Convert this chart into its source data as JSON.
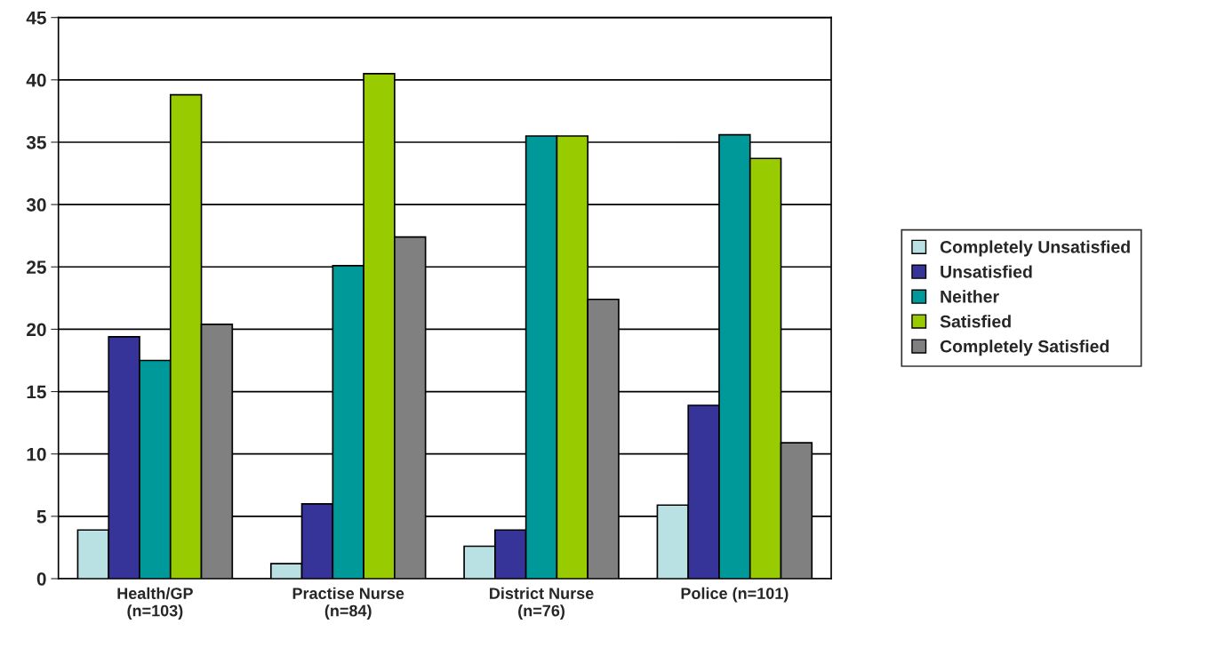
{
  "chart_data": {
    "type": "bar",
    "categories": [
      "Health/GP\n(n=103)",
      "Practise Nurse\n(n=84)",
      "District Nurse\n(n=76)",
      "Police (n=101)"
    ],
    "series": [
      {
        "name": "Completely Unsatisfied",
        "color": "#b9e0e3",
        "values": [
          3.9,
          1.2,
          2.6,
          5.9
        ]
      },
      {
        "name": "Unsatisfied",
        "color": "#363399",
        "values": [
          19.4,
          6.0,
          3.9,
          13.9
        ]
      },
      {
        "name": "Neither",
        "color": "#009999",
        "values": [
          17.5,
          25.1,
          35.5,
          35.6
        ]
      },
      {
        "name": "Satisfied",
        "color": "#99cc00",
        "values": [
          38.8,
          40.5,
          35.5,
          33.7
        ]
      },
      {
        "name": "Completely Satisfied",
        "color": "#808080",
        "values": [
          20.4,
          27.4,
          22.4,
          10.9
        ]
      }
    ],
    "ylim": [
      0,
      45
    ],
    "yticks": [
      0,
      5,
      10,
      15,
      20,
      25,
      30,
      35,
      40,
      45
    ],
    "grid": "y",
    "legend": "right"
  }
}
